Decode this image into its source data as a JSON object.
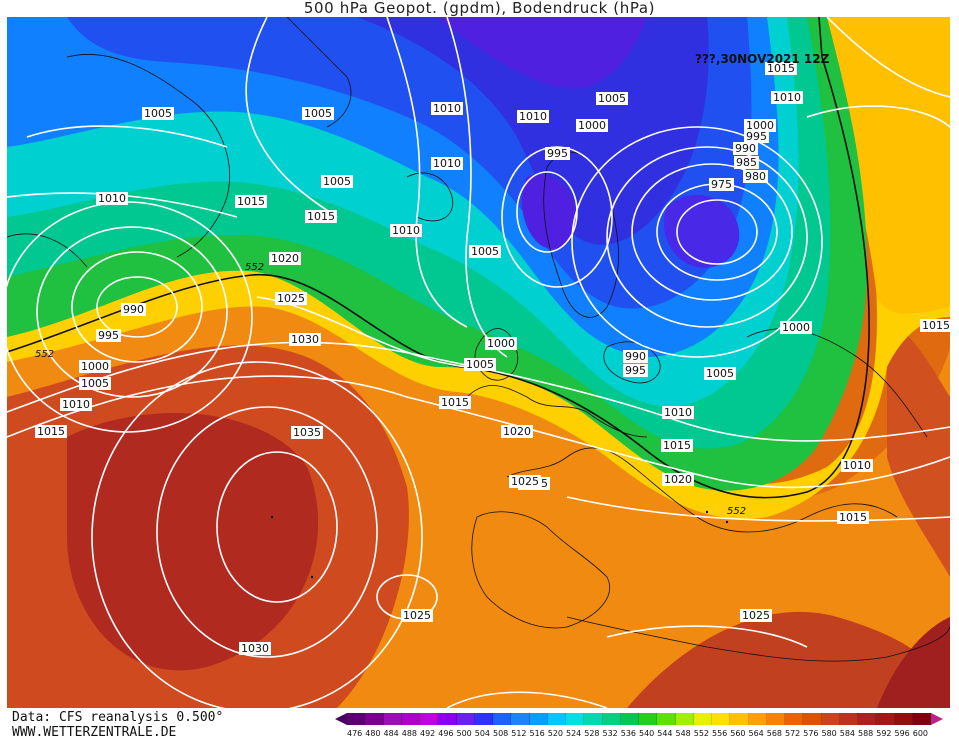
{
  "title": "500 hPa Geopot. (gpdm), Bodendruck (hPa)",
  "run_label": "???,30NOV2021 12Z",
  "footer": {
    "source": "Data: CFS reanalysis 0.500°",
    "website": "WWW.WETTERZENTRALE.DE"
  },
  "legend": {
    "values": [
      "476",
      "480",
      "484",
      "488",
      "492",
      "496",
      "500",
      "504",
      "508",
      "512",
      "516",
      "520",
      "524",
      "528",
      "532",
      "536",
      "540",
      "544",
      "548",
      "552",
      "556",
      "560",
      "564",
      "568",
      "572",
      "576",
      "580",
      "584",
      "588",
      "592",
      "596",
      "600"
    ],
    "colors": [
      "#5a0070",
      "#7a0090",
      "#9a10b0",
      "#b000c8",
      "#c000e0",
      "#8a00f0",
      "#6a20f0",
      "#3030ff",
      "#2060ff",
      "#2080ff",
      "#00a0ff",
      "#00c8ff",
      "#00e0e0",
      "#00d8b0",
      "#00d080",
      "#00c850",
      "#20d020",
      "#60e000",
      "#a0f000",
      "#e8f000",
      "#ffe000",
      "#ffc000",
      "#ffa000",
      "#ff8000",
      "#f06000",
      "#e05000",
      "#d04020",
      "#c03020",
      "#b02020",
      "#a01818",
      "#901010",
      "#800010"
    ]
  },
  "pressure_labels": [
    {
      "text": "1005"
    },
    {
      "text": "1005"
    },
    {
      "text": "1010"
    },
    {
      "text": "1010"
    },
    {
      "text": "1005"
    },
    {
      "text": "1015"
    },
    {
      "text": "1010"
    },
    {
      "text": "1015"
    },
    {
      "text": "1010"
    },
    {
      "text": "1005"
    },
    {
      "text": "1000"
    },
    {
      "text": "1005"
    },
    {
      "text": "1020"
    },
    {
      "text": "1025"
    },
    {
      "text": "990"
    },
    {
      "text": "995"
    },
    {
      "text": "1000"
    },
    {
      "text": "1005"
    },
    {
      "text": "1010"
    },
    {
      "text": "1015"
    },
    {
      "text": "1030"
    },
    {
      "text": "1035"
    },
    {
      "text": "1030"
    },
    {
      "text": "1025"
    },
    {
      "text": "1025"
    },
    {
      "text": "1025"
    },
    {
      "text": "1010"
    },
    {
      "text": "1000"
    },
    {
      "text": "995"
    },
    {
      "text": "1015"
    },
    {
      "text": "1010"
    },
    {
      "text": "1005"
    },
    {
      "text": "1000"
    },
    {
      "text": "995"
    },
    {
      "text": "990"
    },
    {
      "text": "985"
    },
    {
      "text": "980"
    },
    {
      "text": "975"
    },
    {
      "text": "1015"
    },
    {
      "text": "1010"
    },
    {
      "text": "1000"
    },
    {
      "text": "1005"
    },
    {
      "text": "1010"
    },
    {
      "text": "1015"
    },
    {
      "text": "1020"
    },
    {
      "text": "1025"
    },
    {
      "text": "1010"
    },
    {
      "text": "1015"
    },
    {
      "text": "1030"
    },
    {
      "text": "1010"
    },
    {
      "text": "1015"
    },
    {
      "text": "1000"
    },
    {
      "text": "990"
    },
    {
      "text": "995"
    },
    {
      "text": "1005"
    },
    {
      "text": "1015"
    },
    {
      "text": "1010"
    },
    {
      "text": "1020"
    }
  ],
  "height_labels": [
    {
      "text": "552"
    },
    {
      "text": "552"
    },
    {
      "text": "552"
    }
  ]
}
